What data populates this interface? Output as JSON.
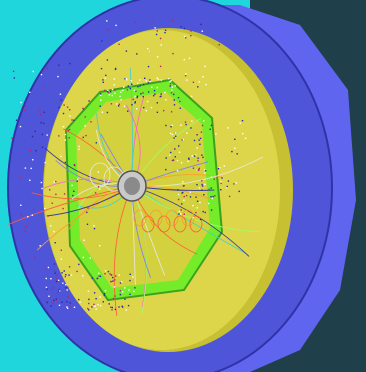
{
  "scene": {
    "subject": "particle-collision-event-display",
    "colors": {
      "background": "#1fd6dc",
      "outer_ring": "#4f55d8",
      "outer_ring_dark": "#2f33a8",
      "outer_ring_side": "#6065f0",
      "yoke_shadow": "#1f3f4a",
      "inner_disk": "#ddd64a",
      "inner_disk_dark": "#c7c032",
      "octagon_frame": "#74ec2a",
      "octagon_frame_dark": "#3aa31c",
      "octagon_fill": "#d4d13e",
      "beam_pipe": "#c9c9c9",
      "track_colors": [
        "#ff5a3a",
        "#e8e8e8",
        "#3fd0d0",
        "#ff9a2a",
        "#7a7aff",
        "#ff5fd0",
        "#2a2aa0",
        "#a0ff60"
      ]
    }
  }
}
